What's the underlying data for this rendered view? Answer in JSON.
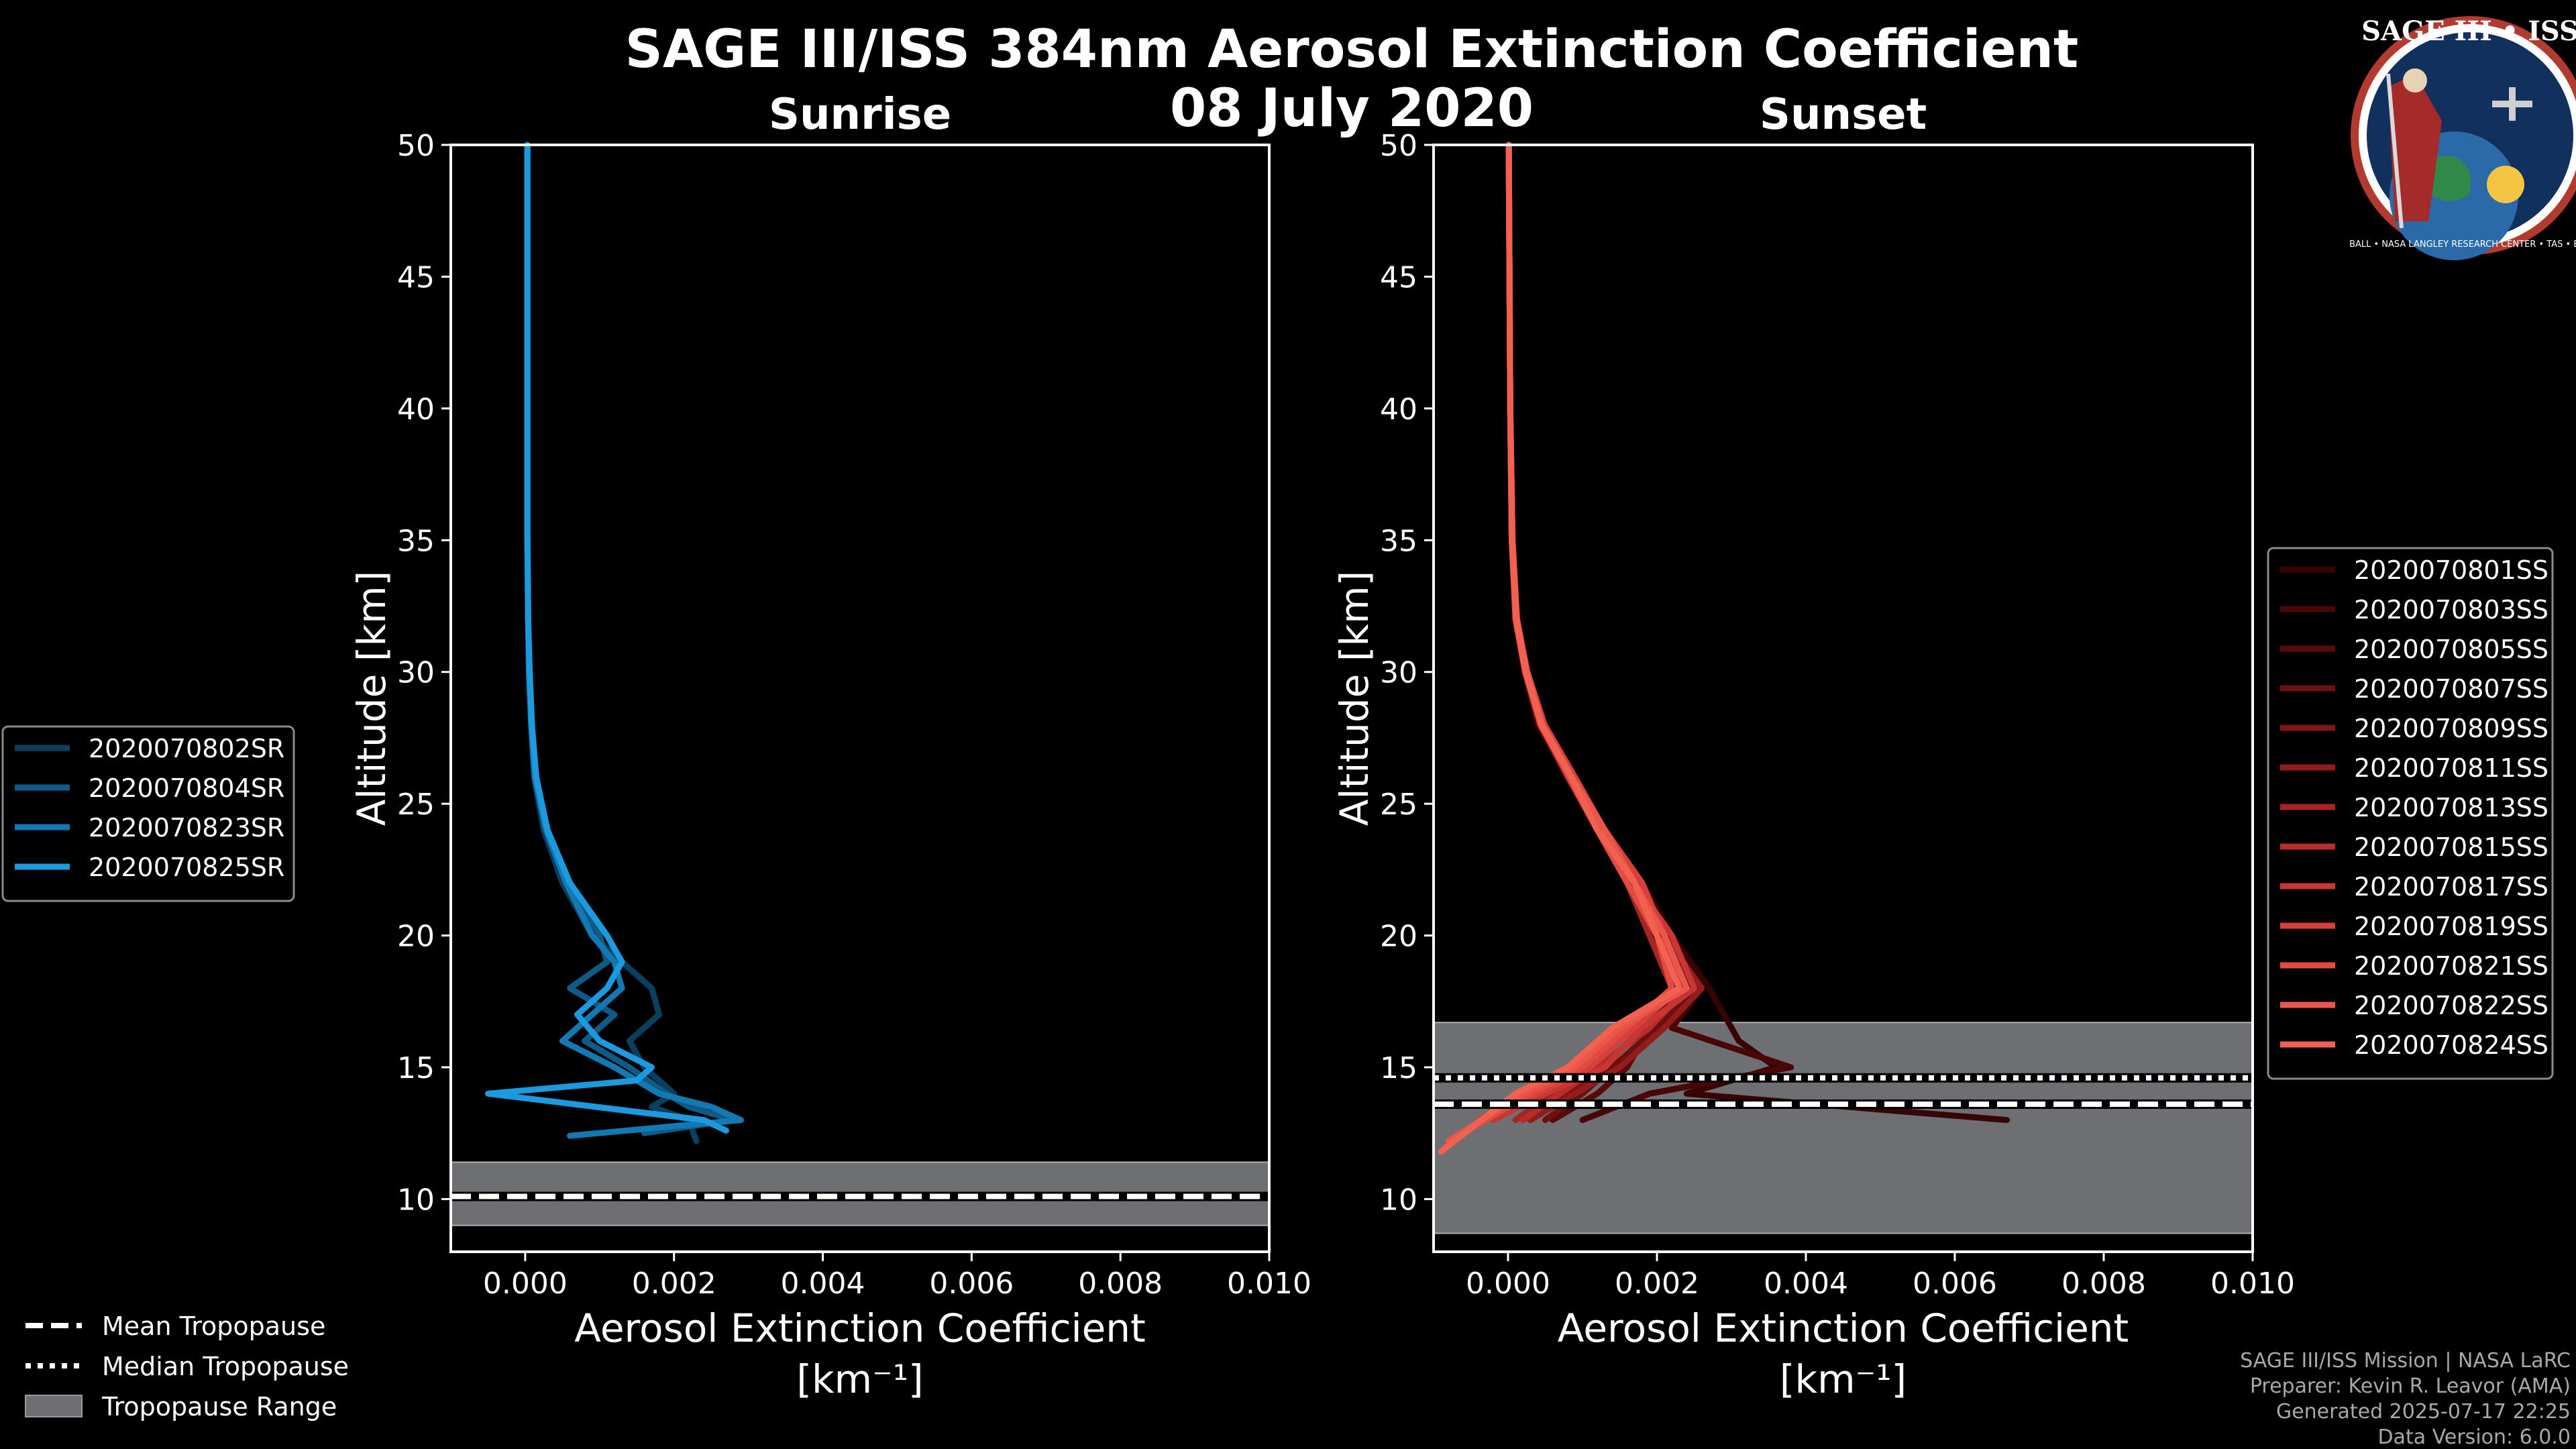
{
  "title_line1": "SAGE III/ISS 384nm Aerosol Extinction Coefficient",
  "title_line2": "08 July 2020",
  "logo": {
    "text": "SAGE III • ISS",
    "ring": "BALL • NASA LANGLEY RESEARCH CENTER • TAS • ESA"
  },
  "credits": [
    "SAGE III/ISS Mission | NASA LaRC",
    "Preparer: Kevin R. Leavor (AMA)",
    "Generated 2025-07-17 22:25",
    "Data Version: 6.0.0"
  ],
  "shared_legend": {
    "mean": "Mean Tropopause",
    "median": "Median Tropopause",
    "range": "Tropopause Range"
  },
  "chart_data": [
    {
      "type": "line",
      "title": "Sunrise",
      "xlabel": "Aerosol Extinction Coefficient",
      "xlabel_units": "[km⁻¹]",
      "ylabel": "Altitude [km]",
      "xlim": [
        -0.001,
        0.01
      ],
      "ylim": [
        8,
        50
      ],
      "xticks": [
        0.0,
        0.002,
        0.004,
        0.006,
        0.008,
        0.01
      ],
      "xtick_labels": [
        "0.000",
        "0.002",
        "0.004",
        "0.006",
        "0.008",
        "0.010"
      ],
      "yticks": [
        10,
        15,
        20,
        25,
        30,
        35,
        40,
        45,
        50
      ],
      "tropopause": {
        "mean": 10.1,
        "median": 10.1,
        "range": [
          9.0,
          11.4
        ]
      },
      "series": [
        {
          "name": "2020070802SR",
          "color": "#0b3f5f",
          "x": [
            3e-05,
            3e-05,
            3e-05,
            3e-05,
            4e-05,
            5e-05,
            8e-05,
            0.00012,
            0.00025,
            0.0005,
            0.0009,
            0.0013,
            0.0017,
            0.0018,
            0.0014,
            0.0016,
            0.002,
            0.0017,
            0.0022,
            0.0023
          ],
          "y": [
            50,
            45,
            40,
            35,
            32,
            30,
            28,
            26,
            24,
            22,
            20,
            19,
            18,
            17,
            16,
            15,
            14,
            13.5,
            13,
            12.2
          ]
        },
        {
          "name": "2020070804SR",
          "color": "#0f5a86",
          "x": [
            3e-05,
            3e-05,
            3e-05,
            3e-05,
            4e-05,
            6e-05,
            9e-05,
            0.00014,
            0.0003,
            0.0006,
            0.001,
            0.0011,
            0.0006,
            0.0012,
            0.0008,
            0.0014,
            0.0019,
            0.0022,
            0.0028,
            0.0016
          ],
          "y": [
            50,
            45,
            40,
            35,
            32,
            30,
            28,
            26,
            24,
            22,
            20,
            19,
            18,
            17,
            16,
            15,
            14,
            13.5,
            13,
            12.5
          ]
        },
        {
          "name": "2020070823SR",
          "color": "#1279b3",
          "x": [
            3e-05,
            3e-05,
            3e-05,
            3e-05,
            4e-05,
            5e-05,
            8e-05,
            0.00013,
            0.00028,
            0.00055,
            0.0009,
            0.0012,
            0.0013,
            0.0009,
            0.0005,
            0.0012,
            0.0018,
            0.0025,
            0.0029,
            0.0006
          ],
          "y": [
            50,
            45,
            40,
            35,
            32,
            30,
            28,
            26,
            24,
            22,
            20,
            19,
            18,
            17,
            16,
            15,
            14,
            13.5,
            13,
            12.4
          ]
        },
        {
          "name": "2020070825SR",
          "color": "#1b9ae0",
          "x": [
            3e-05,
            3e-05,
            3e-05,
            3e-05,
            4e-05,
            6e-05,
            9e-05,
            0.00015,
            0.0003,
            0.0006,
            0.0011,
            0.0013,
            0.0011,
            0.0007,
            0.001,
            0.0017,
            0.0015,
            -0.0005,
            0.0024,
            0.0027
          ],
          "y": [
            50,
            45,
            40,
            35,
            32,
            30,
            28,
            26,
            24,
            22,
            20,
            19,
            18,
            17,
            16,
            15,
            14.5,
            14,
            13,
            12.6
          ]
        }
      ]
    },
    {
      "type": "line",
      "title": "Sunset",
      "xlabel": "Aerosol Extinction Coefficient",
      "xlabel_units": "[km⁻¹]",
      "ylabel": "Altitude [km]",
      "xlim": [
        -0.001,
        0.01
      ],
      "ylim": [
        8,
        50
      ],
      "xticks": [
        0.0,
        0.002,
        0.004,
        0.006,
        0.008,
        0.01
      ],
      "xtick_labels": [
        "0.000",
        "0.002",
        "0.004",
        "0.006",
        "0.008",
        "0.010"
      ],
      "yticks": [
        10,
        15,
        20,
        25,
        30,
        35,
        40,
        45,
        50
      ],
      "tropopause": {
        "mean": 13.6,
        "median": 14.6,
        "range": [
          8.7,
          16.7
        ]
      },
      "series": [
        {
          "name": "2020070801SS",
          "color": "#3a0303",
          "x": [
            1e-05,
            2e-05,
            3e-05,
            5e-05,
            0.0001,
            0.00022,
            0.0004,
            0.0008,
            0.0013,
            0.0018,
            0.0022,
            0.0027,
            0.0031,
            0.0036,
            0.0024,
            0.0067
          ],
          "y": [
            50,
            45,
            40,
            35,
            32,
            30,
            28,
            26,
            24,
            22,
            20,
            18,
            16,
            15,
            14,
            13
          ]
        },
        {
          "name": "2020070803SS",
          "color": "#4a0606",
          "x": [
            1e-05,
            2e-05,
            3e-05,
            6e-05,
            0.00011,
            0.00024,
            0.00045,
            0.0008,
            0.0012,
            0.0017,
            0.0021,
            0.0026,
            0.0022,
            0.0038,
            0.0019,
            0.001
          ],
          "y": [
            50,
            45,
            40,
            35,
            32,
            30,
            28,
            26,
            24,
            22,
            20,
            18,
            16.5,
            15,
            14,
            13
          ]
        },
        {
          "name": "2020070805SS",
          "color": "#5a0a0a",
          "x": [
            1e-05,
            2e-05,
            3e-05,
            5e-05,
            0.0001,
            0.00023,
            0.00042,
            0.00082,
            0.0012,
            0.0017,
            0.002,
            0.0024,
            0.0019,
            0.0016,
            0.0012,
            0.0006
          ],
          "y": [
            50,
            45,
            40,
            35,
            32,
            30,
            28,
            26,
            24,
            22,
            20,
            18,
            16.5,
            15,
            14,
            13
          ]
        },
        {
          "name": "2020070807SS",
          "color": "#6c1010",
          "x": [
            1e-05,
            2e-05,
            3e-05,
            6e-05,
            0.00012,
            0.00025,
            0.00046,
            0.00085,
            0.0013,
            0.0018,
            0.0021,
            0.0025,
            0.002,
            0.0014,
            0.001,
            0.0005
          ],
          "y": [
            50,
            45,
            40,
            35,
            32,
            30,
            28,
            26,
            24,
            22,
            20,
            18,
            16.5,
            15,
            14,
            13
          ]
        },
        {
          "name": "2020070809SS",
          "color": "#801616",
          "x": [
            1e-05,
            2e-05,
            3e-05,
            5e-05,
            0.00011,
            0.00024,
            0.00044,
            0.0008,
            0.0012,
            0.0016,
            0.002,
            0.0023,
            0.0018,
            0.0013,
            0.0008,
            0.0002
          ],
          "y": [
            50,
            45,
            40,
            35,
            32,
            30,
            28,
            26,
            24,
            22,
            20,
            18,
            16.5,
            15,
            14,
            13
          ]
        },
        {
          "name": "2020070811SS",
          "color": "#931c1c",
          "x": [
            1e-05,
            2e-05,
            3e-05,
            6e-05,
            0.00012,
            0.00026,
            0.00048,
            0.00088,
            0.0013,
            0.0017,
            0.0021,
            0.0026,
            0.0021,
            0.0015,
            0.0009,
            0.0003
          ],
          "y": [
            50,
            45,
            40,
            35,
            32,
            30,
            28,
            26,
            24,
            22,
            20,
            18,
            16.5,
            15,
            14,
            13
          ]
        },
        {
          "name": "2020070813SS",
          "color": "#a62424",
          "x": [
            1e-05,
            2e-05,
            3e-05,
            5e-05,
            0.0001,
            0.00023,
            0.00043,
            0.00083,
            0.0012,
            0.0016,
            0.0019,
            0.0022,
            0.0017,
            0.0011,
            0.0006,
            0.0001
          ],
          "y": [
            50,
            45,
            40,
            35,
            32,
            30,
            28,
            26,
            24,
            22,
            20,
            18,
            16.5,
            15,
            14,
            13
          ]
        },
        {
          "name": "2020070815SS",
          "color": "#b82d2b",
          "x": [
            1e-05,
            2e-05,
            3e-05,
            6e-05,
            0.00012,
            0.00025,
            0.00047,
            0.00087,
            0.0013,
            0.0018,
            0.002,
            0.0024,
            0.0019,
            0.0012,
            0.0007,
            0.0002
          ],
          "y": [
            50,
            45,
            40,
            35,
            32,
            30,
            28,
            26,
            24,
            22,
            20,
            18,
            16.5,
            15,
            14,
            13
          ]
        },
        {
          "name": "2020070817SS",
          "color": "#c73632",
          "x": [
            1e-05,
            2e-05,
            3e-05,
            5e-05,
            0.00011,
            0.00024,
            0.00045,
            0.00084,
            0.0012,
            0.0017,
            0.0022,
            0.0025,
            0.0018,
            0.0013,
            0.0005,
            -0.0002
          ],
          "y": [
            50,
            45,
            40,
            35,
            32,
            30,
            28,
            26,
            24,
            22,
            20,
            18,
            16.5,
            15,
            14,
            13
          ]
        },
        {
          "name": "2020070819SS",
          "color": "#d6403a",
          "x": [
            1e-05,
            2e-05,
            3e-05,
            6e-05,
            0.00012,
            0.00026,
            0.00049,
            0.0009,
            0.0013,
            0.0018,
            0.0021,
            0.0023,
            0.0017,
            0.0011,
            0.0004,
            -0.0004
          ],
          "y": [
            50,
            45,
            40,
            35,
            32,
            30,
            28,
            26,
            24,
            22,
            20,
            18,
            16.5,
            15,
            14,
            13
          ]
        },
        {
          "name": "2020070821SS",
          "color": "#e14b42",
          "x": [
            1e-05,
            2e-05,
            3e-05,
            5e-05,
            0.0001,
            0.00023,
            0.00044,
            0.00082,
            0.0012,
            0.0016,
            0.002,
            0.0022,
            0.0016,
            0.001,
            0.0003,
            -0.0006
          ],
          "y": [
            50,
            45,
            40,
            35,
            32,
            30,
            28,
            26,
            24,
            22,
            20,
            18,
            16.5,
            15,
            14,
            12.5
          ]
        },
        {
          "name": "2020070822SS",
          "color": "#ea564b",
          "x": [
            1e-05,
            2e-05,
            3e-05,
            6e-05,
            0.00012,
            0.00025,
            0.00046,
            0.00086,
            0.0013,
            0.0017,
            0.0021,
            0.0024,
            0.0015,
            0.0009,
            0.0002,
            -0.0008
          ],
          "y": [
            50,
            45,
            40,
            35,
            32,
            30,
            28,
            26,
            24,
            22,
            20,
            18,
            16.5,
            15,
            14,
            12.2
          ]
        },
        {
          "name": "2020070824SS",
          "color": "#f26150",
          "x": [
            1e-05,
            2e-05,
            3e-05,
            5e-05,
            0.00011,
            0.00024,
            0.00045,
            0.00085,
            0.0012,
            0.0017,
            0.002,
            0.0023,
            0.0014,
            0.0008,
            0.0001,
            -0.0009
          ],
          "y": [
            50,
            45,
            40,
            35,
            32,
            30,
            28,
            26,
            24,
            22,
            20,
            18,
            16.5,
            15,
            14,
            11.8
          ]
        }
      ]
    }
  ]
}
